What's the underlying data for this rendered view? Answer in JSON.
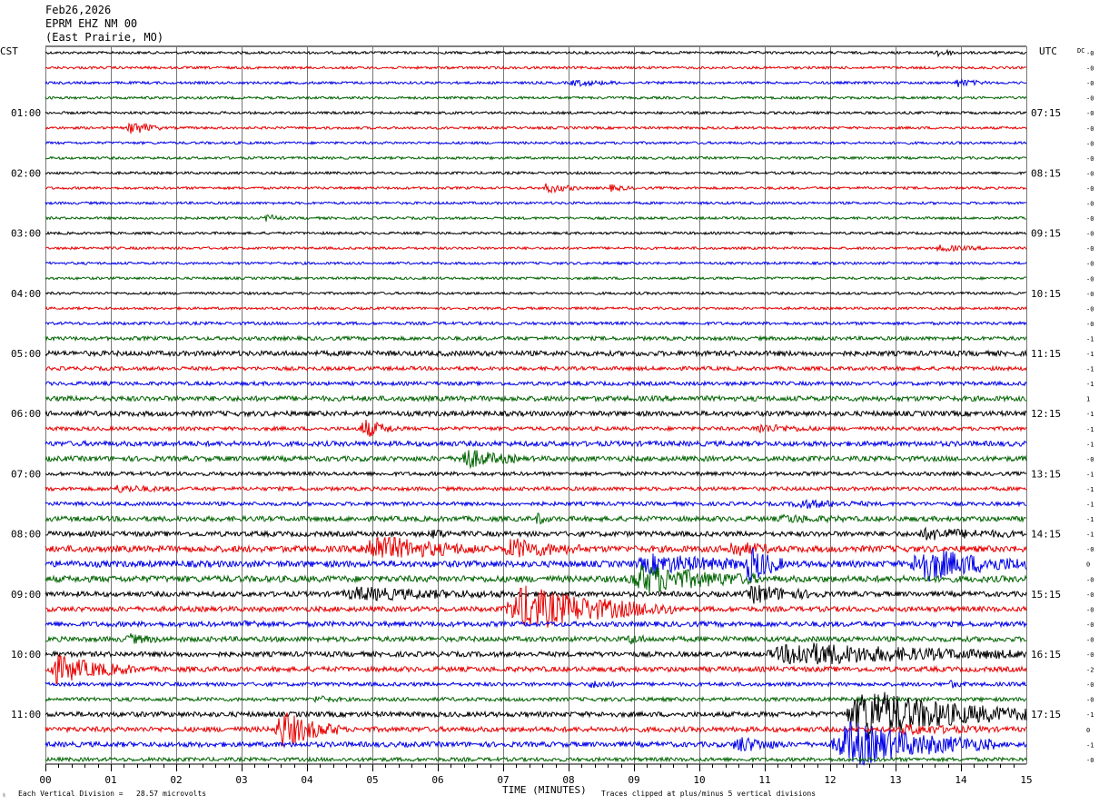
{
  "header": {
    "date": "Feb26,2026",
    "station": "EPRM EHZ NM 00",
    "location": "(East Prairie, MO)"
  },
  "left_axis_title": "CST",
  "right_axis_title": "UTC",
  "dc_title": "DC",
  "footer": {
    "scale_note": "Each Vertical Division =   28.57 microvolts",
    "clip_note": "Traces clipped at plus/minus 5 vertical divisions",
    "corner_mark": "♮"
  },
  "trace_colors": [
    "#000000",
    "#e80000",
    "#0000e8",
    "#006400"
  ],
  "chart_data": {
    "type": "line",
    "xlabel": "TIME (MINUTES)",
    "x_ticks": [
      "00",
      "01",
      "02",
      "03",
      "04",
      "05",
      "06",
      "07",
      "08",
      "09",
      "10",
      "11",
      "12",
      "13",
      "14",
      "15"
    ],
    "xlim": [
      0,
      15
    ],
    "trace_count": 48,
    "left_hour_labels": [
      {
        "row": 4,
        "text": "01:00"
      },
      {
        "row": 8,
        "text": "02:00"
      },
      {
        "row": 12,
        "text": "03:00"
      },
      {
        "row": 16,
        "text": "04:00"
      },
      {
        "row": 20,
        "text": "05:00"
      },
      {
        "row": 24,
        "text": "06:00"
      },
      {
        "row": 28,
        "text": "07:00"
      },
      {
        "row": 32,
        "text": "08:00"
      },
      {
        "row": 36,
        "text": "09:00"
      },
      {
        "row": 40,
        "text": "10:00"
      },
      {
        "row": 44,
        "text": "11:00"
      }
    ],
    "right_hour_labels": [
      {
        "row": 4,
        "text": "07:15"
      },
      {
        "row": 8,
        "text": "08:15"
      },
      {
        "row": 12,
        "text": "09:15"
      },
      {
        "row": 16,
        "text": "10:15"
      },
      {
        "row": 20,
        "text": "11:15"
      },
      {
        "row": 24,
        "text": "12:15"
      },
      {
        "row": 28,
        "text": "13:15"
      },
      {
        "row": 32,
        "text": "14:15"
      },
      {
        "row": 36,
        "text": "15:15"
      },
      {
        "row": 40,
        "text": "16:15"
      },
      {
        "row": 44,
        "text": "17:15"
      }
    ],
    "dc_offsets": [
      "-0",
      "-0",
      "-0",
      "-0",
      "-0",
      "-0",
      "-0",
      "-0",
      "-0",
      "-0",
      "-0",
      "-0",
      "-0",
      "-0",
      "-0",
      "-0",
      "-0",
      "-0",
      "-0",
      "-1",
      "-1",
      "-1",
      "-1",
      "1",
      "-1",
      "-1",
      "-1",
      "-0",
      "-1",
      "-1",
      "-1",
      "-1",
      "-1",
      "-0",
      "0",
      "-0",
      "-0",
      "-0",
      "-0",
      "-0",
      "-0",
      "-2",
      "-0",
      "-0",
      "-1",
      "0",
      "-1",
      "-0"
    ],
    "noise_levels": [
      1,
      1,
      1,
      1,
      1,
      1,
      1,
      1,
      1,
      1,
      1,
      1,
      1,
      1,
      1,
      1,
      1,
      1,
      1.2,
      1.5,
      2,
      1.5,
      1.5,
      2,
      2,
      1.5,
      2,
      2,
      1.5,
      1.5,
      1.5,
      2,
      2,
      2.5,
      2.5,
      2.5,
      2,
      2,
      2,
      2,
      2,
      2,
      1.5,
      1.5,
      2,
      2,
      2,
      1.5
    ],
    "events": [
      {
        "row": 0,
        "start": 13.6,
        "duration": 0.4,
        "amplitude": 4
      },
      {
        "row": 2,
        "start": 8.0,
        "duration": 0.8,
        "amplitude": 3
      },
      {
        "row": 2,
        "start": 13.9,
        "duration": 0.5,
        "amplitude": 4
      },
      {
        "row": 5,
        "start": 1.25,
        "duration": 0.5,
        "amplitude": 8
      },
      {
        "row": 9,
        "start": 7.6,
        "duration": 0.6,
        "amplitude": 5
      },
      {
        "row": 9,
        "start": 8.6,
        "duration": 0.4,
        "amplitude": 3
      },
      {
        "row": 11,
        "start": 3.35,
        "duration": 0.3,
        "amplitude": 4
      },
      {
        "row": 13,
        "start": 13.6,
        "duration": 0.8,
        "amplitude": 3
      },
      {
        "row": 25,
        "start": 4.8,
        "duration": 0.6,
        "amplitude": 10
      },
      {
        "row": 25,
        "start": 10.8,
        "duration": 1.0,
        "amplitude": 4
      },
      {
        "row": 27,
        "start": 6.3,
        "duration": 0.9,
        "amplitude": 11
      },
      {
        "row": 29,
        "start": 1.0,
        "duration": 1.0,
        "amplitude": 3
      },
      {
        "row": 30,
        "start": 11.4,
        "duration": 1.2,
        "amplitude": 4
      },
      {
        "row": 31,
        "start": 7.5,
        "duration": 0.2,
        "amplitude": 6
      },
      {
        "row": 31,
        "start": 11.2,
        "duration": 1.0,
        "amplitude": 3
      },
      {
        "row": 32,
        "start": 5.9,
        "duration": 0.3,
        "amplitude": 5
      },
      {
        "row": 32,
        "start": 13.3,
        "duration": 1.7,
        "amplitude": 5
      },
      {
        "row": 33,
        "start": 4.8,
        "duration": 1.8,
        "amplitude": 14
      },
      {
        "row": 33,
        "start": 7.0,
        "duration": 1.2,
        "amplitude": 10
      },
      {
        "row": 33,
        "start": 10.4,
        "duration": 0.8,
        "amplitude": 7
      },
      {
        "row": 34,
        "start": 9.0,
        "duration": 2.2,
        "amplitude": 9
      },
      {
        "row": 34,
        "start": 10.7,
        "duration": 0.6,
        "amplitude": 18
      },
      {
        "row": 34,
        "start": 13.2,
        "duration": 1.8,
        "amplitude": 18
      },
      {
        "row": 35,
        "start": 8.9,
        "duration": 2.0,
        "amplitude": 15
      },
      {
        "row": 36,
        "start": 4.5,
        "duration": 2.5,
        "amplitude": 6
      },
      {
        "row": 36,
        "start": 10.7,
        "duration": 1.2,
        "amplitude": 9
      },
      {
        "row": 37,
        "start": 7.0,
        "duration": 2.6,
        "amplitude": 24
      },
      {
        "row": 38,
        "start": 3.0,
        "duration": 0.4,
        "amplitude": 3
      },
      {
        "row": 39,
        "start": 1.2,
        "duration": 0.6,
        "amplitude": 4
      },
      {
        "row": 39,
        "start": 8.9,
        "duration": 0.3,
        "amplitude": 5
      },
      {
        "row": 40,
        "start": 11.0,
        "duration": 4.0,
        "amplitude": 12
      },
      {
        "row": 41,
        "start": 0.0,
        "duration": 1.4,
        "amplitude": 14
      },
      {
        "row": 42,
        "start": 8.3,
        "duration": 0.5,
        "amplitude": 3
      },
      {
        "row": 42,
        "start": 13.8,
        "duration": 0.3,
        "amplitude": 3
      },
      {
        "row": 43,
        "start": 4.1,
        "duration": 0.4,
        "amplitude": 3
      },
      {
        "row": 44,
        "start": 12.2,
        "duration": 2.8,
        "amplitude": 28
      },
      {
        "row": 45,
        "start": 3.5,
        "duration": 1.0,
        "amplitude": 20
      },
      {
        "row": 45,
        "start": 13.0,
        "duration": 1.5,
        "amplitude": 4
      },
      {
        "row": 46,
        "start": 10.5,
        "duration": 0.8,
        "amplitude": 8
      },
      {
        "row": 46,
        "start": 12.0,
        "duration": 2.5,
        "amplitude": 24
      }
    ]
  }
}
